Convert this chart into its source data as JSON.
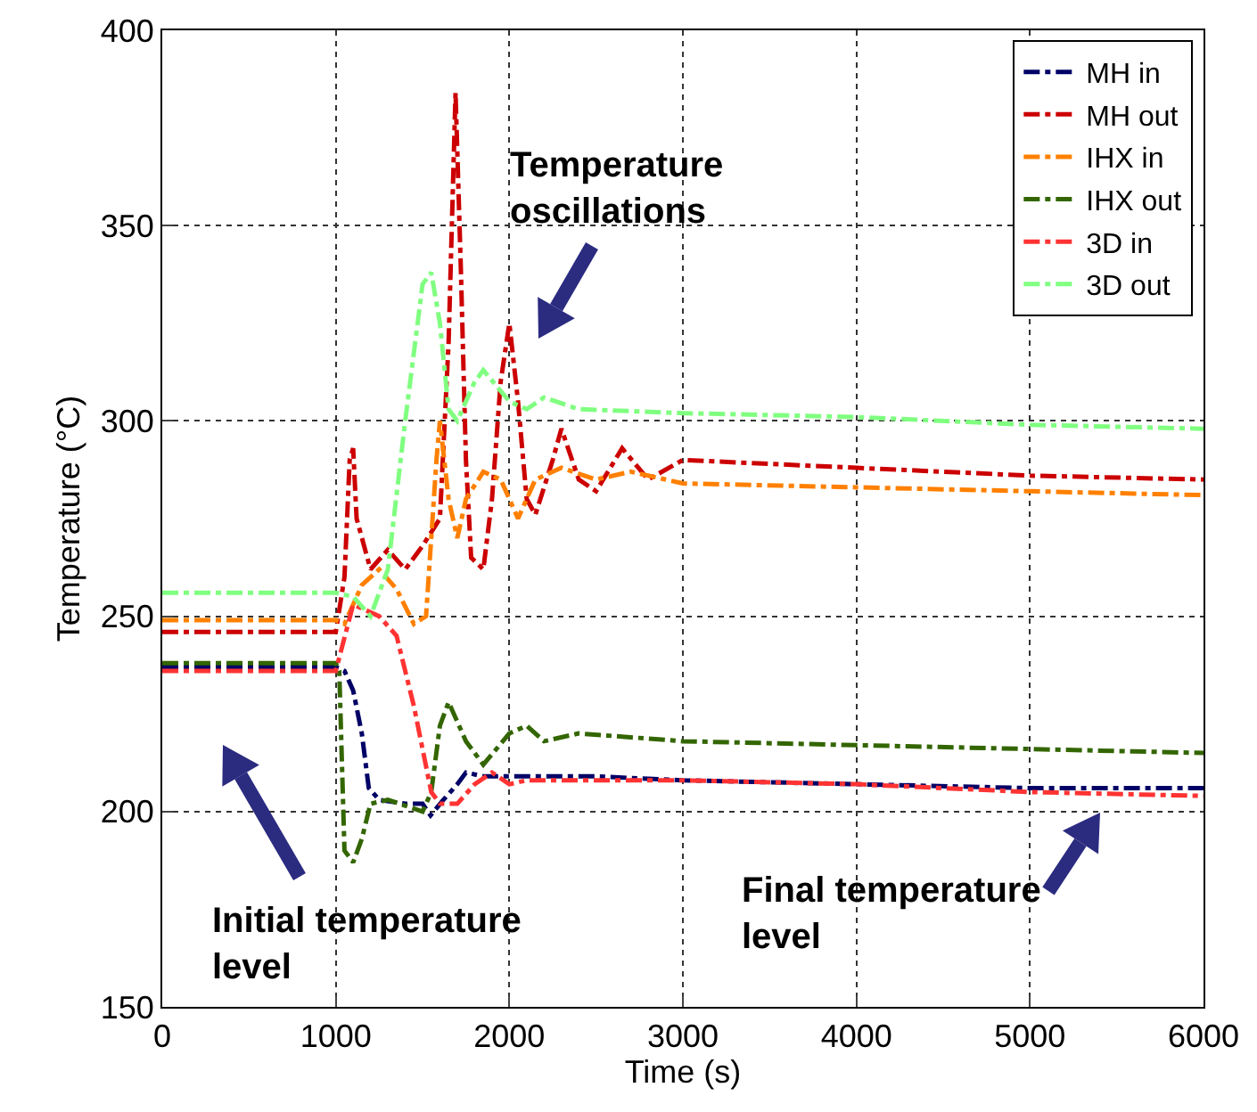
{
  "chart_data": {
    "type": "line",
    "xlabel": "Time (s)",
    "ylabel": "Temperature (°C)",
    "xlim": [
      0,
      6000
    ],
    "ylim": [
      150,
      400
    ],
    "xticks": [
      0,
      1000,
      2000,
      3000,
      4000,
      5000,
      6000
    ],
    "yticks": [
      150,
      200,
      250,
      300,
      350,
      400
    ],
    "grid": true,
    "legend": "top right",
    "line_style": "dashed",
    "marker": "none",
    "series": [
      {
        "name": "MH in",
        "color": "#000066",
        "x": [
          0,
          500,
          1000,
          1050,
          1100,
          1150,
          1190,
          1250,
          1400,
          1500,
          1546,
          1620,
          1700,
          1750,
          1850,
          2000,
          2500,
          3000,
          4000,
          5000,
          6000
        ],
        "values": [
          237,
          237,
          237,
          236,
          231,
          220,
          206,
          203,
          202,
          202,
          199,
          203,
          207,
          210,
          209,
          209,
          209,
          208,
          207,
          206,
          206
        ]
      },
      {
        "name": "MH out",
        "color": "#cc0000",
        "x": [
          0,
          500,
          1000,
          1050,
          1080,
          1100,
          1120,
          1200,
          1300,
          1400,
          1500,
          1600,
          1650,
          1690,
          1720,
          1750,
          1780,
          1850,
          1900,
          1950,
          2000,
          2050,
          2100,
          2150,
          2250,
          2300,
          2400,
          2500,
          2650,
          2800,
          3000,
          4000,
          5000,
          6000
        ],
        "values": [
          246,
          246,
          246,
          260,
          290,
          293,
          275,
          262,
          267,
          262,
          268,
          275,
          320,
          384,
          340,
          290,
          265,
          262,
          280,
          310,
          325,
          305,
          280,
          276,
          290,
          298,
          285,
          282,
          293,
          285,
          290,
          288,
          286,
          285
        ]
      },
      {
        "name": "IHX in",
        "color": "#ff8000",
        "x": [
          0,
          500,
          1000,
          1050,
          1150,
          1250,
          1350,
          1450,
          1520,
          1580,
          1600,
          1650,
          1700,
          1750,
          1850,
          1950,
          2050,
          2150,
          2300,
          2500,
          2700,
          3000,
          4000,
          5000,
          6000
        ],
        "values": [
          249,
          249,
          249,
          248,
          258,
          262,
          257,
          248,
          250,
          290,
          300,
          280,
          270,
          280,
          287,
          285,
          275,
          285,
          288,
          285,
          287,
          284,
          283,
          282,
          281
        ]
      },
      {
        "name": "IHX out",
        "color": "#336600",
        "x": [
          0,
          500,
          1000,
          1020,
          1050,
          1100,
          1150,
          1200,
          1300,
          1500,
          1550,
          1600,
          1650,
          1750,
          1850,
          2000,
          2100,
          2200,
          2400,
          3000,
          4000,
          5000,
          6000
        ],
        "values": [
          238,
          238,
          238,
          236,
          190,
          187,
          193,
          202,
          203,
          200,
          205,
          222,
          228,
          218,
          212,
          220,
          222,
          218,
          220,
          218,
          217,
          216,
          215
        ]
      },
      {
        "name": "3D in",
        "color": "#ff3333",
        "x": [
          0,
          500,
          1000,
          1100,
          1250,
          1350,
          1450,
          1550,
          1600,
          1700,
          1800,
          1900,
          2000,
          2100,
          3000,
          4000,
          5000,
          6000
        ],
        "values": [
          236,
          236,
          236,
          253,
          250,
          245,
          227,
          205,
          202,
          202,
          207,
          210,
          207,
          208,
          208,
          207,
          205,
          204
        ]
      },
      {
        "name": "3D out",
        "color": "#80ff80",
        "x": [
          0,
          500,
          1000,
          1100,
          1200,
          1300,
          1400,
          1500,
          1550,
          1600,
          1650,
          1700,
          1800,
          1850,
          2000,
          2100,
          2200,
          2400,
          3000,
          4000,
          5000,
          6000
        ],
        "values": [
          256,
          256,
          256,
          255,
          250,
          262,
          300,
          335,
          338,
          325,
          303,
          300,
          310,
          313,
          305,
          303,
          306,
          303,
          302,
          301,
          299,
          298
        ]
      }
    ],
    "annotations": [
      "Temperature oscillations",
      "Initial temperature level",
      "Final temperature level"
    ]
  }
}
